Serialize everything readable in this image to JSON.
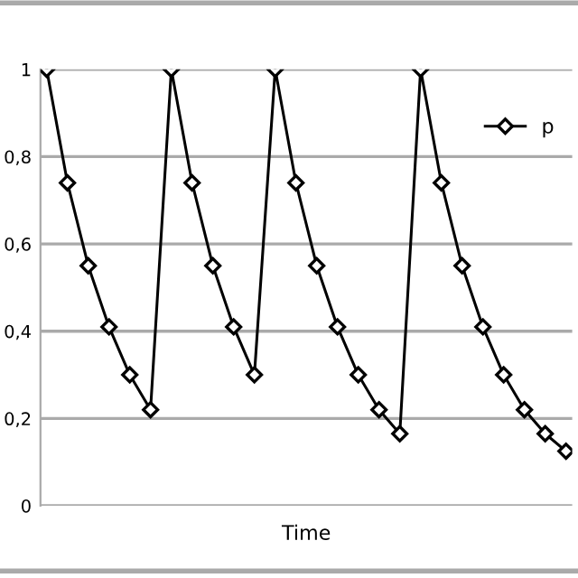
{
  "chart_data": {
    "type": "line",
    "xlabel": "Time",
    "categories": [
      null,
      null,
      null,
      null,
      null,
      null,
      null,
      null,
      null,
      null,
      null,
      null,
      null,
      null,
      null,
      null,
      null,
      null,
      null,
      null,
      null,
      null,
      null,
      null,
      null,
      null
    ],
    "series": [
      {
        "name": "p",
        "color": "#000000",
        "values": [
          1,
          0.74,
          0.55,
          0.41,
          0.3,
          0.22,
          1,
          0.74,
          0.55,
          0.41,
          0.3,
          1,
          0.74,
          0.55,
          0.41,
          0.3,
          0.22,
          0.165,
          1,
          0.74,
          0.55,
          0.41,
          0.3,
          0.22,
          0.165,
          0.125
        ]
      }
    ],
    "ylim": [
      0,
      1
    ],
    "yticks": [
      0,
      {
        "value": 0.2,
        "label": "0,2"
      },
      {
        "value": 0.4,
        "label": "0,4"
      },
      {
        "value": 0.6,
        "label": "0,6"
      },
      {
        "value": 0.8,
        "label": "0,8"
      },
      1
    ],
    "grid": "y",
    "legend": "top right",
    "marker": "diamond",
    "line_style": "solid"
  }
}
